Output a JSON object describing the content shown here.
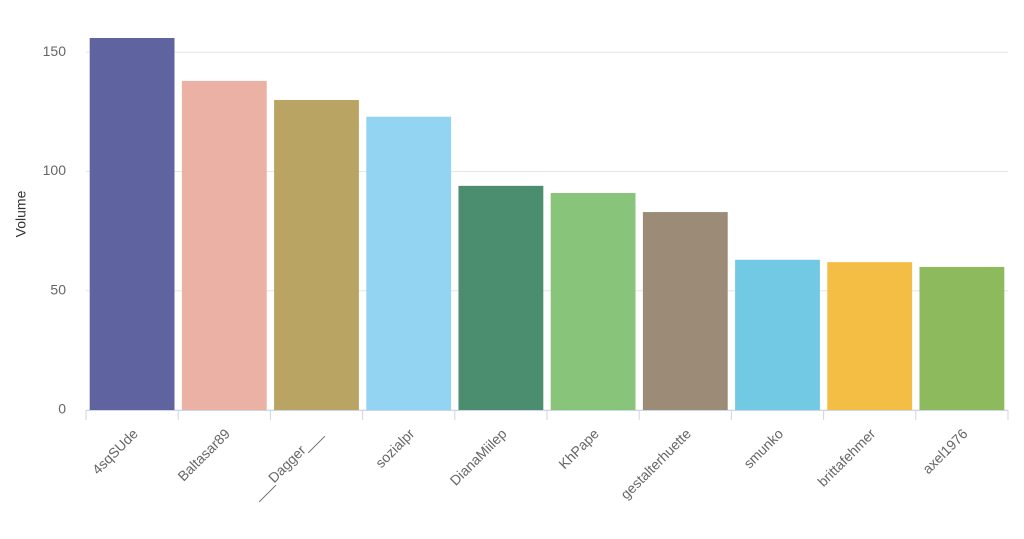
{
  "chart_data": {
    "type": "bar",
    "y_label": "Volume",
    "categories": [
      "4sqSUde",
      "Baltasar89",
      "___Dagger___",
      "sozialpr",
      "DianaMiilep",
      "KhPape",
      "gestalterhuette",
      "smunko",
      "brittafehmer",
      "axel1976"
    ],
    "values": [
      156,
      138,
      130,
      123,
      94,
      91,
      83,
      63,
      62,
      60
    ],
    "colors": [
      "#5f64a0",
      "#ebb1a4",
      "#b9a463",
      "#93d4f3",
      "#4b8e6f",
      "#88c57a",
      "#9c8b76",
      "#72c9e4",
      "#f4bd43",
      "#8dba5c"
    ],
    "ylim": [
      0,
      156
    ],
    "yticks": [
      0,
      50,
      100,
      150
    ],
    "grid": true
  }
}
